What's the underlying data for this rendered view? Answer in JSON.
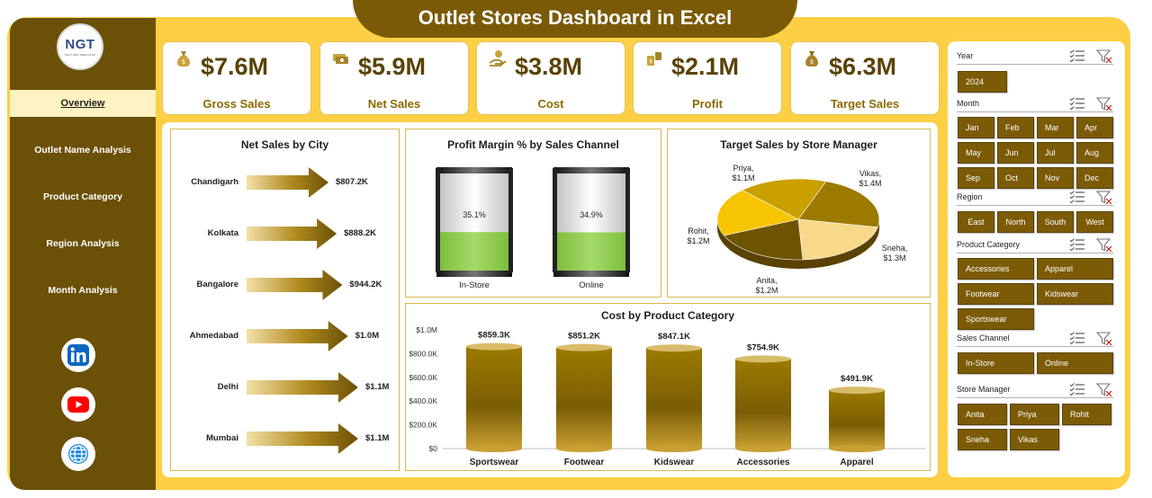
{
  "header": {
    "title": "Outlet Stores Dashboard in Excel"
  },
  "brand": {
    "logo_text": "NGT",
    "logo_sub": "NEXT GEN TEMPLATES"
  },
  "sidebar": {
    "items": [
      {
        "label": "Overview",
        "active": true
      },
      {
        "label": "Outlet Name Analysis",
        "active": false
      },
      {
        "label": "Product Category",
        "active": false
      },
      {
        "label": "Region Analysis",
        "active": false
      },
      {
        "label": "Month Analysis",
        "active": false
      }
    ],
    "social": [
      "linkedin-icon",
      "youtube-icon",
      "globe-icon"
    ]
  },
  "kpis": [
    {
      "value": "$7.6M",
      "label": "Gross Sales",
      "icon": "money-bag-icon"
    },
    {
      "value": "$5.9M",
      "label": "Net Sales",
      "icon": "cash-stack-icon"
    },
    {
      "value": "$3.8M",
      "label": "Cost",
      "icon": "hand-coin-icon"
    },
    {
      "value": "$2.1M",
      "label": "Profit",
      "icon": "money-growth-icon"
    },
    {
      "value": "$6.3M",
      "label": "Target Sales",
      "icon": "money-bag-icon"
    }
  ],
  "colors": {
    "frame": "#FCCF44",
    "dark": "#6B5007",
    "button": "#7B5B06",
    "green": "#92D050"
  },
  "chart_data": [
    {
      "type": "bar",
      "orientation": "horizontal",
      "title": "Net Sales by City",
      "categories": [
        "Chandigarh",
        "Kolkata",
        "Bangalore",
        "Ahmedabad",
        "Delhi",
        "Mumbai"
      ],
      "values": [
        807.2,
        888.2,
        944.2,
        1000,
        1100,
        1100
      ],
      "value_labels": [
        "$807.2K",
        "$888.2K",
        "$944.2K",
        "$1.0M",
        "$1.1M",
        "$1.1M"
      ],
      "unit": "K"
    },
    {
      "type": "bar",
      "title": "Profit Margin % by Sales Channel",
      "categories": [
        "In-Store",
        "Online"
      ],
      "values": [
        35.1,
        34.9
      ],
      "value_labels": [
        "35.1%",
        "34.9%"
      ],
      "ylim": [
        0,
        100
      ]
    },
    {
      "type": "pie",
      "title": "Target Sales by Store Manager",
      "categories": [
        "Vikas",
        "Sneha",
        "Anita",
        "Rohit",
        "Priya"
      ],
      "values": [
        1.4,
        1.3,
        1.2,
        1.2,
        1.1
      ],
      "value_labels": [
        "$1.4M",
        "$1.3M",
        "$1.2M",
        "$1.2M",
        "$1.1M"
      ],
      "colors": [
        "#9C7A00",
        "#F8D98A",
        "#6E5400",
        "#F6C400",
        "#C9A000"
      ]
    },
    {
      "type": "bar",
      "title": "Cost by Product Category",
      "categories": [
        "Sportswear",
        "Footwear",
        "Kidswear",
        "Accessories",
        "Apparel"
      ],
      "values": [
        859.3,
        851.2,
        847.1,
        754.9,
        491.9
      ],
      "value_labels": [
        "$859.3K",
        "$851.2K",
        "$847.1K",
        "$754.9K",
        "$491.9K"
      ],
      "yticks": [
        "$0",
        "$200.0K",
        "$400.0K",
        "$600.0K",
        "$800.0K",
        "$1.0M"
      ],
      "ylim": [
        0,
        1000
      ]
    }
  ],
  "slicers": {
    "year": {
      "title": "Year",
      "items": [
        "2024"
      ]
    },
    "month": {
      "title": "Month",
      "items": [
        "Jan",
        "Feb",
        "Mar",
        "Apr",
        "May",
        "Jun",
        "Jul",
        "Aug",
        "Sep",
        "Oct",
        "Nov",
        "Dec"
      ]
    },
    "region": {
      "title": "Region",
      "items": [
        "East",
        "North",
        "South",
        "West"
      ]
    },
    "category": {
      "title": "Product Category",
      "items": [
        "Accessories",
        "Apparel",
        "Footwear",
        "Kidswear",
        "Sportswear"
      ]
    },
    "channel": {
      "title": "Sales Channel",
      "items": [
        "In-Store",
        "Online"
      ]
    },
    "manager": {
      "title": "Store Manager",
      "items": [
        "Anita",
        "Priya",
        "Rohit",
        "Sneha",
        "Vikas"
      ]
    }
  }
}
